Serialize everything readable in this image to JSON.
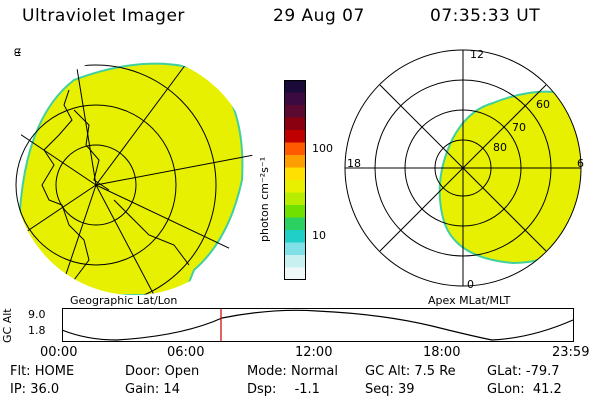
{
  "header": {
    "instrument": "Ultraviolet Imager",
    "date": "29 Aug 07",
    "time": "07:35:33 UT"
  },
  "left_panel": {
    "caption": "Geographic Lat/Lon"
  },
  "right_panel": {
    "caption": "Apex MLat/MLT",
    "mlt_labels": {
      "top": "12",
      "left": "18",
      "right": "6",
      "bottom": "0"
    },
    "lat_labels": [
      "60",
      "70",
      "80"
    ]
  },
  "colorbar": {
    "unit": "photon cm⁻²s⁻¹",
    "ticks": [
      "100",
      "10"
    ],
    "colors": [
      "#1a0a3a",
      "#3a0a40",
      "#5a0a30",
      "#8a0010",
      "#c00000",
      "#ff5a00",
      "#ff9e00",
      "#ffe000",
      "#e8f000",
      "#b8ec00",
      "#6fe000",
      "#2ad060",
      "#20d0c8",
      "#80e0e8",
      "#c8f0f0",
      "#f0f8f8"
    ]
  },
  "altitude_strip": {
    "label": "GC Alt",
    "y_ticks": [
      "9.0",
      "1.8"
    ],
    "x_ticks": [
      "00:00",
      "06:00",
      "12:00",
      "18:00",
      "23:59"
    ],
    "current_time_marker": "07:35:33"
  },
  "footer": {
    "flt_label": "Flt:",
    "flt_value": "HOME",
    "ip_label": "IP:",
    "ip_value": "36.0",
    "door_label": "Door:",
    "door_value": "Open",
    "gain_label": "Gain:",
    "gain_value": "14",
    "mode_label": "Mode:",
    "mode_value": "Normal",
    "dsp_label": "Dsp:",
    "dsp_value": "-1.1",
    "gcalt_label": "GC Alt:",
    "gcalt_value": "7.5 Re",
    "seq_label": "Seq:",
    "seq_value": "39",
    "glat_label": "GLat:",
    "glat_value": "-79.7",
    "glon_label": "GLon:",
    "glon_value": "41.2"
  },
  "colors": {
    "aurora": "#e6f000",
    "edge": "#40d0a0",
    "marker": "#c00000"
  }
}
